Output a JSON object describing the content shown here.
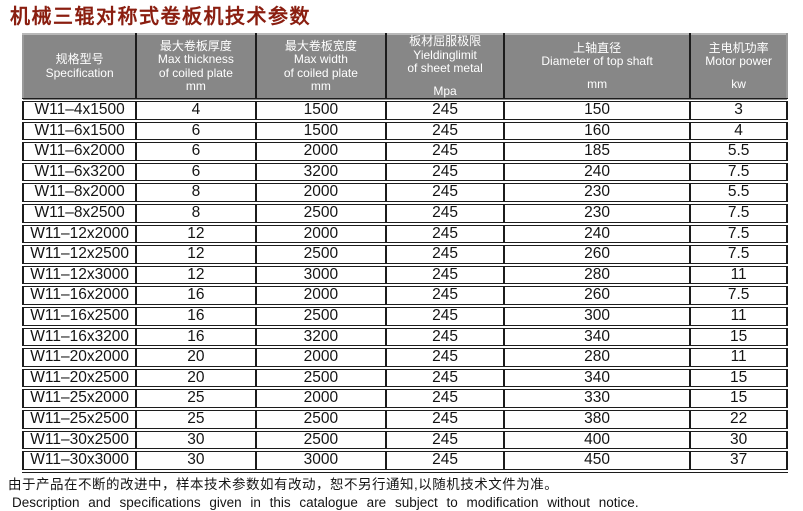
{
  "title": "机械三辊对称式卷板机技术参数",
  "colors": {
    "title_color": "#8a1e10",
    "header_bg": "#878787",
    "border_color": "#1c1c1c"
  },
  "table": {
    "columns": [
      {
        "name": "specification",
        "width": "14.8%",
        "lines": [
          "规格型号",
          "Specification"
        ],
        "unit": "",
        "unit_gap": false
      },
      {
        "name": "max-thickness",
        "width": "15.6%",
        "lines": [
          "最大卷板厚度",
          "Max thickness",
          "of coiled plate"
        ],
        "unit": "mm",
        "unit_gap": false
      },
      {
        "name": "max-width",
        "width": "17.1%",
        "lines": [
          "最大卷板宽度",
          "Max width",
          "of coiled plate"
        ],
        "unit": "mm",
        "unit_gap": false
      },
      {
        "name": "yielding-limit",
        "width": "15.4%",
        "lines": [
          "板材屈服极限",
          "Yieldinglimit",
          "of sheet metal"
        ],
        "unit": "Mpa",
        "unit_gap": true
      },
      {
        "name": "top-shaft-diameter",
        "width": "24.5%",
        "lines": [
          "上轴直径",
          "Diameter of top shaft"
        ],
        "unit": "mm",
        "unit_gap": true
      },
      {
        "name": "motor-power",
        "width": "12.6%",
        "lines": [
          "主电机功率",
          "Motor power"
        ],
        "unit": "kw",
        "unit_gap": true
      }
    ],
    "rows": [
      [
        "W11–4x1500",
        "4",
        "1500",
        "245",
        "150",
        "3"
      ],
      [
        "W11–6x1500",
        "6",
        "1500",
        "245",
        "160",
        "4"
      ],
      [
        "W11–6x2000",
        "6",
        "2000",
        "245",
        "185",
        "5.5"
      ],
      [
        "W11–6x3200",
        "6",
        "3200",
        "245",
        "240",
        "7.5"
      ],
      [
        "W11–8x2000",
        "8",
        "2000",
        "245",
        "230",
        "5.5"
      ],
      [
        "W11–8x2500",
        "8",
        "2500",
        "245",
        "230",
        "7.5"
      ],
      [
        "W11–12x2000",
        "12",
        "2000",
        "245",
        "240",
        "7.5"
      ],
      [
        "W11–12x2500",
        "12",
        "2500",
        "245",
        "260",
        "7.5"
      ],
      [
        "W11–12x3000",
        "12",
        "3000",
        "245",
        "280",
        "11"
      ],
      [
        "W11–16x2000",
        "16",
        "2000",
        "245",
        "260",
        "7.5"
      ],
      [
        "W11–16x2500",
        "16",
        "2500",
        "245",
        "300",
        "11"
      ],
      [
        "W11–16x3200",
        "16",
        "3200",
        "245",
        "340",
        "15"
      ],
      [
        "W11–20x2000",
        "20",
        "2000",
        "245",
        "280",
        "11"
      ],
      [
        "W11–20x2500",
        "20",
        "2500",
        "245",
        "340",
        "15"
      ],
      [
        "W11–25x2000",
        "25",
        "2000",
        "245",
        "330",
        "15"
      ],
      [
        "W11–25x2500",
        "25",
        "2500",
        "245",
        "380",
        "22"
      ],
      [
        "W11–30x2500",
        "30",
        "2500",
        "245",
        "400",
        "30"
      ],
      [
        "W11–30x3000",
        "30",
        "3000",
        "245",
        "450",
        "37"
      ]
    ]
  },
  "footer": {
    "note_zh": "由于产品在不断的改进中，样本技术参数如有改动，恕不另行通知,以随机技术文件为准。",
    "note_en": "Description and specifications given in this catalogue are subject to modification without notice."
  }
}
